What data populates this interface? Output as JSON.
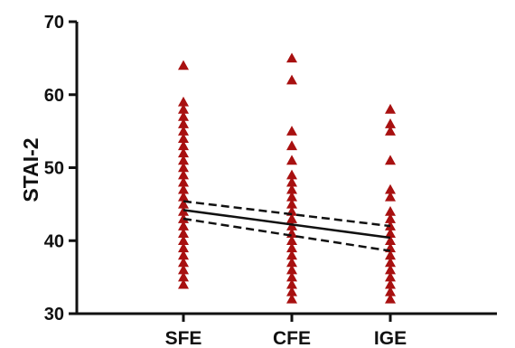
{
  "chart_data": {
    "type": "scatter",
    "title": "",
    "xlabel": "",
    "ylabel": "STAI-2",
    "ylim": [
      30,
      70
    ],
    "yticks": [
      30,
      40,
      50,
      60,
      70
    ],
    "grid": false,
    "categories": [
      "SFE",
      "CFE",
      "IGE"
    ],
    "marker_color": "#a81010",
    "marker": "triangle",
    "groups": [
      {
        "category": "SFE",
        "values": [
          64,
          59,
          58,
          57,
          56,
          55,
          54,
          53,
          52,
          51,
          50,
          49,
          48,
          47,
          46,
          45,
          44,
          43,
          42,
          41,
          40,
          39,
          38,
          37,
          36,
          35,
          34
        ]
      },
      {
        "category": "CFE",
        "values": [
          65,
          62,
          55,
          53,
          51,
          49,
          48,
          47,
          46,
          45,
          44,
          43,
          42,
          41,
          40,
          39,
          38,
          37,
          36,
          35,
          34,
          33,
          32
        ]
      },
      {
        "category": "IGE",
        "values": [
          58,
          56,
          55,
          51,
          47,
          46,
          44,
          43,
          42,
          41,
          40,
          39,
          38,
          37,
          36,
          35,
          34,
          33,
          32
        ]
      }
    ],
    "regression": {
      "fit": [
        44.2,
        40.4
      ],
      "ci_upper": [
        45.4,
        42.0
      ],
      "ci_lower": [
        43.0,
        38.6
      ]
    }
  }
}
